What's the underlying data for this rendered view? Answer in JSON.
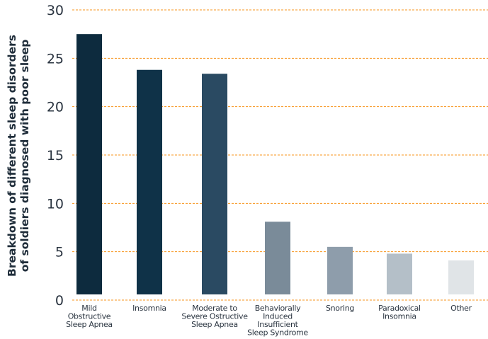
{
  "chart_data": {
    "type": "bar",
    "title": "",
    "xlabel": "",
    "ylabel": [
      "Breakdown of different sleep disorders",
      "of soldiers diagnosed with poor sleep"
    ],
    "ylim": [
      0,
      30
    ],
    "yticks": [
      0,
      5,
      10,
      15,
      20,
      25,
      30
    ],
    "grid": true,
    "grid_color": "#f7941d",
    "categories": [
      [
        "Mild",
        "Obstructive",
        "Sleep Apnea"
      ],
      [
        "Insomnia"
      ],
      [
        "Moderate to",
        "Severe Ostructive",
        "Sleep Apnea"
      ],
      [
        "Behaviorally",
        "Induced",
        "Insufficient",
        "Sleep Syndrome"
      ],
      [
        "Snoring"
      ],
      [
        "Paradoxical",
        "Insomnia"
      ],
      [
        "Other"
      ]
    ],
    "values": [
      27.5,
      23.8,
      23.4,
      8.1,
      5.5,
      4.8,
      4.1
    ],
    "colors": [
      "#0d2b3e",
      "#0f3248",
      "#2a4a62",
      "#7a8b99",
      "#8e9dab",
      "#b4bfc8",
      "#e0e4e7"
    ]
  }
}
